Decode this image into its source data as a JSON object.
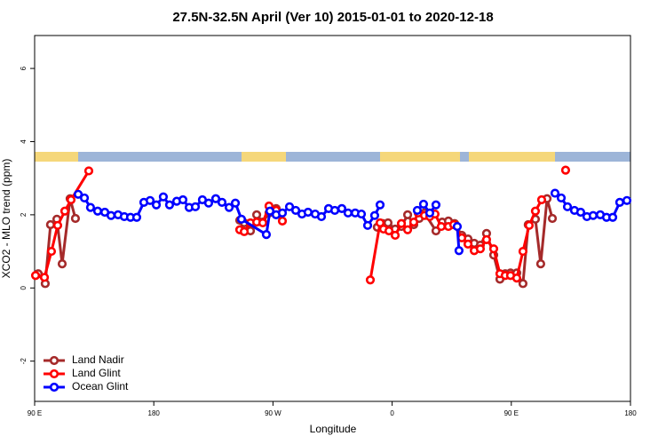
{
  "chart_data": {
    "type": "line",
    "title": "27.5N-32.5N April (Ver 10)   2015-01-01 to 2020-12-18",
    "x_label": "Longitude",
    "y_label": "XCO2 - MLO trend (ppm)",
    "xlim": [
      90,
      540
    ],
    "ylim": [
      -3.1,
      6.9
    ],
    "xticks": [
      {
        "value": 90,
        "label": "90 E"
      },
      180,
      {
        "value": 270,
        "label": "90 W"
      },
      {
        "value": 360,
        "label": "0"
      },
      {
        "value": 450,
        "label": "90 E"
      },
      {
        "value": 540,
        "label": "180"
      }
    ],
    "yticks": [
      -2,
      0,
      2,
      4,
      6
    ],
    "legend": "bottom-left",
    "series": [
      {
        "name": "Land Nadir",
        "color": "#a52a2a",
        "x": [
          92.7,
          98,
          102,
          106.8,
          110.8,
          116.8,
          120.8,
          null,
          244.9,
          248.3,
          253,
          257.7,
          262.3,
          267,
          272.4,
          null,
          348.8,
          352.9,
          356.9,
          362.3,
          367,
          371.7,
          376.3,
          380.4,
          384.4,
          393.1,
          397.8,
          402.5,
          407.2,
          412.6,
          417.3,
          422,
          426.6,
          431.3,
          436.7,
          441.4,
          445.4,
          449.4,
          454.1,
          458.8,
          462.8,
          468.2,
          472.2,
          477,
          481
        ],
        "values": [
          0.39,
          0.12,
          1.73,
          1.88,
          0.66,
          2.44,
          1.9,
          null,
          1.85,
          1.78,
          1.56,
          2.0,
          1.8,
          2.05,
          2.17,
          null,
          1.66,
          1.76,
          1.78,
          1.61,
          1.68,
          2.0,
          1.73,
          1.9,
          2.05,
          1.56,
          1.8,
          1.83,
          1.76,
          1.44,
          1.34,
          1.22,
          1.17,
          1.49,
          0.9,
          0.24,
          0.39,
          0.41,
          0.41,
          0.12,
          1.73,
          1.88,
          0.66,
          2.44,
          1.9
        ]
      },
      {
        "name": "Land Glint",
        "color": "#ff0000",
        "x": [
          90.7,
          97.4,
          102.7,
          107.4,
          112.8,
          117.5,
          130.9,
          null,
          244.9,
          248.3,
          253,
          257.7,
          262.3,
          267,
          272.4,
          277.1,
          null,
          343.5,
          350.9,
          353.5,
          357.6,
          362.3,
          367,
          371.7,
          376.3,
          379.7,
          384.4,
          388.4,
          392.4,
          397.1,
          402.5,
          406.5,
          412.6,
          417.3,
          422,
          426.6,
          431.3,
          436.7,
          441.4,
          445.4,
          449.4,
          454.1,
          458.8,
          463.5,
          468.2,
          472.9,
          null,
          491
        ],
        "values": [
          0.34,
          0.29,
          1.0,
          1.71,
          2.1,
          2.41,
          3.2,
          null,
          1.59,
          1.54,
          1.78,
          1.8,
          1.78,
          2.24,
          2.12,
          1.83,
          null,
          0.22,
          1.78,
          1.61,
          1.56,
          1.44,
          1.76,
          1.59,
          1.8,
          2.05,
          1.98,
          1.95,
          2.02,
          1.68,
          1.68,
          1.73,
          1.37,
          1.2,
          1.02,
          1.07,
          1.32,
          1.07,
          0.39,
          0.34,
          0.34,
          0.27,
          1.0,
          1.71,
          2.1,
          2.41,
          null,
          3.22
        ]
      },
      {
        "name": "Ocean Glint",
        "color": "#0000ff",
        "x": [
          122.9,
          127.6,
          132.2,
          137.6,
          143,
          147.7,
          153,
          157.7,
          162.4,
          167.1,
          172.5,
          177.2,
          181.9,
          187.2,
          191.9,
          197.3,
          202,
          206.7,
          211.4,
          216.7,
          221.4,
          226.8,
          231.5,
          236.9,
          241.6,
          246.2,
          265,
          267.7,
          272.4,
          277.1,
          282.5,
          287.2,
          291.9,
          296.5,
          301.9,
          306.6,
          312,
          316.7,
          322,
          326.7,
          332.1,
          336.8,
          341.5,
          346.8,
          350.9,
          null,
          379,
          383.7,
          388.4,
          393.1,
          null,
          409.2,
          410.5,
          null,
          483,
          487.7,
          492.4,
          497.7,
          502.4,
          507.1,
          511.8,
          517.2,
          521.9,
          526.6,
          531.9,
          537.3
        ],
        "values": [
          2.56,
          2.46,
          2.2,
          2.1,
          2.07,
          1.98,
          2.0,
          1.95,
          1.93,
          1.93,
          2.34,
          2.39,
          2.27,
          2.49,
          2.27,
          2.37,
          2.41,
          2.2,
          2.22,
          2.41,
          2.32,
          2.44,
          2.34,
          2.2,
          2.32,
          1.88,
          1.46,
          2.1,
          2.0,
          2.05,
          2.22,
          2.12,
          2.02,
          2.07,
          2.02,
          1.95,
          2.17,
          2.12,
          2.17,
          2.05,
          2.05,
          2.02,
          1.71,
          1.98,
          2.27,
          null,
          2.12,
          2.29,
          2.05,
          2.27,
          null,
          1.68,
          1.02,
          null,
          2.59,
          2.46,
          2.22,
          2.12,
          2.07,
          1.95,
          1.98,
          2.0,
          1.93,
          1.93,
          2.34,
          2.39
        ]
      }
    ]
  }
}
